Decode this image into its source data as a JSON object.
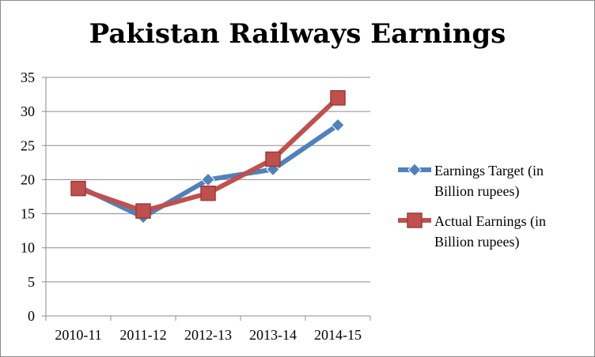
{
  "chart_data": {
    "type": "line",
    "title": "Pakistan Railways Earnings",
    "categories": [
      "2010-11",
      "2011-12",
      "2012-13",
      "2013-14",
      "2014-15"
    ],
    "ylim": [
      0,
      35
    ],
    "yticks": [
      0,
      5,
      10,
      15,
      20,
      25,
      30,
      35
    ],
    "grid": true,
    "legend_position": "right",
    "series": [
      {
        "name": "Earnings Target (in Billion rupees)",
        "legend_lines": [
          "Earnings Target (in",
          "Billion rupees)"
        ],
        "values": [
          19,
          14.5,
          20,
          21.5,
          28
        ],
        "color": "#4f81bd",
        "marker": "diamond"
      },
      {
        "name": "Actual Earnings (in Billion rupees)",
        "legend_lines": [
          "Actual Earnings (in",
          "Billion rupees)"
        ],
        "values": [
          18.7,
          15.4,
          18,
          23,
          32
        ],
        "color": "#c0504d",
        "marker": "square"
      }
    ]
  }
}
